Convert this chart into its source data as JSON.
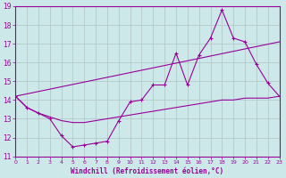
{
  "xlabel": "Windchill (Refroidissement éolien,°C)",
  "background_color": "#cce8e8",
  "line_color": "#990099",
  "grid_color": "#b0c4c4",
  "ylim": [
    11,
    19
  ],
  "xlim": [
    0,
    23
  ],
  "yticks": [
    11,
    12,
    13,
    14,
    15,
    16,
    17,
    18,
    19
  ],
  "xticks": [
    0,
    1,
    2,
    3,
    4,
    5,
    6,
    7,
    8,
    9,
    10,
    11,
    12,
    13,
    14,
    15,
    16,
    17,
    18,
    19,
    20,
    21,
    22,
    23
  ],
  "series1_x": [
    0,
    1,
    2,
    3,
    4,
    5,
    6,
    7,
    8,
    9,
    10,
    11,
    12,
    13,
    14,
    15,
    16,
    17,
    18,
    19,
    20,
    21,
    22,
    23
  ],
  "series1_y": [
    14.2,
    13.6,
    13.3,
    13.0,
    12.1,
    11.5,
    11.6,
    11.7,
    11.8,
    12.9,
    13.9,
    14.0,
    14.8,
    14.8,
    16.5,
    14.8,
    16.4,
    17.3,
    18.8,
    17.3,
    17.1,
    15.9,
    14.9,
    14.2
  ],
  "series2_x": [
    0,
    1,
    2,
    3,
    4,
    5,
    6,
    7,
    8,
    9,
    10,
    11,
    12,
    13,
    14,
    15,
    16,
    17,
    18,
    19,
    20,
    21,
    22,
    23
  ],
  "series2_y": [
    14.2,
    13.6,
    13.3,
    13.1,
    12.9,
    12.8,
    12.8,
    12.9,
    13.0,
    13.1,
    13.2,
    13.3,
    13.4,
    13.5,
    13.6,
    13.7,
    13.8,
    13.9,
    14.0,
    14.0,
    14.1,
    14.1,
    14.1,
    14.2
  ],
  "series3_x": [
    0,
    23
  ],
  "series3_y": [
    14.2,
    17.1
  ]
}
